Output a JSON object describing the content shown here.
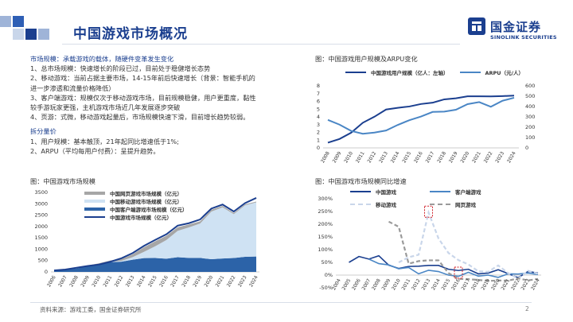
{
  "header": {
    "title": "中国游戏市场概况",
    "logo_cn": "国金证券",
    "logo_en": "SINOLINK SECURITIES",
    "accent_colors": [
      "#1b3f8f",
      "#2e5fb5",
      "#9fb4d8"
    ]
  },
  "left_text": {
    "heading1": "市场规模：承载游戏的载体，随硬件变革发生变化",
    "lines1": [
      "1、总市场规模：快速增长的阶段已过，目前处于稳健增长态势",
      "2、移动游戏：当前占据主要市场，14-15年前后快速增长（背景：智能手机的",
      "进一步渗透和流量价格降低）",
      "3、客户端游戏：规模仅次于移动游戏市场，目前规模稳健，用户更重度，黏性",
      "较手游玩家更强，主机游戏市场近几年发展逐步突破",
      "4、页游：式微，移动游戏起量后，市场规模快速下滑，目前增长趋势较弱。"
    ],
    "heading2": "拆分量价",
    "lines2": [
      "1、用户规模：基本触顶，21年起同比增速低于1%;",
      "2、ARPU（平均每用户付费）：呈提升趋势。"
    ]
  },
  "charts": {
    "users_title": "图：中国游戏用户规模及ARPU变化",
    "market_title": "图：中国游戏市场规模",
    "growth_title": "图：中国游戏市场规模同比增速"
  },
  "chart_data": [
    {
      "type": "line",
      "title": "图：中国游戏用户规模及ARPU变化",
      "x": [
        "2008",
        "2009",
        "2010",
        "2011",
        "2012",
        "2013",
        "2014",
        "2015",
        "2016",
        "2017",
        "2018",
        "2019",
        "2020",
        "2021",
        "2022",
        "2023",
        "2024"
      ],
      "series": [
        {
          "name": "中国游戏用户规模（亿人：左轴）",
          "axis": "left",
          "color": "#1b3f8f",
          "values": [
            0.67,
            1.15,
            1.96,
            3.24,
            4.02,
            4.95,
            5.17,
            5.34,
            5.66,
            5.83,
            6.26,
            6.4,
            6.65,
            6.66,
            6.64,
            6.68,
            6.74
          ]
        },
        {
          "name": "ARPU（元/人）",
          "axis": "right",
          "color": "#4a86c5",
          "values": [
            271,
            225,
            164,
            137,
            148,
            168,
            222,
            268,
            303,
            348,
            351,
            369,
            423,
            443,
            398,
            456,
            485
          ]
        }
      ],
      "ylim_left": [
        0,
        8
      ],
      "yticks_left": [
        0,
        1,
        2,
        3,
        4,
        5,
        6,
        7,
        8
      ],
      "ylim_right": [
        0,
        600
      ],
      "yticks_right": [
        0,
        100,
        200,
        300,
        400,
        500,
        600
      ]
    },
    {
      "type": "area",
      "title": "图：中国游戏市场规模",
      "x": [
        "2006",
        "2007",
        "2008",
        "2009",
        "2010",
        "2011",
        "2012",
        "2013",
        "2014",
        "2015",
        "2016",
        "2017",
        "2018",
        "2019",
        "2020",
        "2021",
        "2022",
        "2023",
        "2024"
      ],
      "series": [
        {
          "name": "中国客户端游戏市场规模（亿元）",
          "color": "#2c63a8",
          "values": [
            65,
            106,
            154,
            257,
            331,
            429,
            451,
            537,
            609,
            612,
            583,
            648,
            619,
            616,
            560,
            589,
            614,
            663,
            680
          ]
        },
        {
          "name": "中国移动游戏市场规模（亿元）",
          "color": "#cfe2f3",
          "values": [
            0,
            0,
            2,
            5,
            15,
            23,
            33,
            113,
            275,
            515,
            820,
            1161,
            1339,
            1514,
            2096,
            2255,
            1930,
            2269,
            2382
          ]
        },
        {
          "name": "中国网页游戏市场规模（亿元）",
          "color": "#a6a6a6",
          "values": [
            0,
            0,
            5,
            19,
            36,
            52,
            81,
            128,
            203,
            220,
            188,
            157,
            127,
            98,
            77,
            60,
            52,
            41,
            35
          ]
        },
        {
          "name": "中国游戏市场规模（亿元）",
          "color": "#1b3f8f",
          "kind": "line",
          "values": [
            65,
            106,
            186,
            263,
            326,
            446,
            603,
            832,
            1145,
            1407,
            1656,
            2036,
            2144,
            2308,
            2787,
            2965,
            2659,
            3029,
            3257
          ]
        }
      ],
      "ylim": [
        0,
        3500
      ],
      "yticks": [
        0,
        500,
        1000,
        1500,
        2000,
        2500,
        3000,
        3500
      ]
    },
    {
      "type": "line",
      "title": "图：中国游戏市场规模同比增速",
      "x": [
        "2004",
        "2005",
        "2006",
        "2007",
        "2008",
        "2009",
        "2010",
        "2011",
        "2012",
        "2013",
        "2014",
        "2015",
        "2016",
        "2017",
        "2018",
        "2019",
        "2020",
        "2021",
        "2022",
        "2023",
        "2024"
      ],
      "series": [
        {
          "name": "中国游戏",
          "color": "#1b3f8f",
          "values": [
            null,
            50,
            73,
            63,
            76,
            39,
            26,
            34,
            35,
            38,
            38,
            23,
            18,
            23,
            5,
            8,
            21,
            6,
            -10,
            14,
            8
          ]
        },
        {
          "name": "客户端游戏",
          "color": "#4a86c5",
          "values": [
            null,
            null,
            null,
            63,
            45,
            40,
            25,
            30,
            5,
            19,
            14,
            0,
            -5,
            11,
            -4,
            0,
            -9,
            5,
            4,
            8,
            2
          ]
        },
        {
          "name": "移动游戏",
          "color": "#c9d6ea",
          "dash": true,
          "values": [
            null,
            null,
            null,
            null,
            null,
            null,
            50,
            70,
            80,
            246,
            144,
            87,
            59,
            42,
            15,
            13,
            38,
            8,
            -14,
            17,
            5
          ]
        },
        {
          "name": "网页游戏",
          "color": "#9a9a9a",
          "dash": true,
          "values": [
            null,
            null,
            null,
            null,
            null,
            210,
            190,
            45,
            55,
            58,
            58,
            8,
            -15,
            -16,
            -19,
            -23,
            -21,
            -22,
            -13,
            -21,
            -15
          ]
        }
      ],
      "ylim": [
        -50,
        300
      ],
      "yticks": [
        -50,
        0,
        50,
        100,
        150,
        200,
        250,
        300
      ],
      "annotations": [
        "2013 移动游戏峰值（红色虚线框）",
        "2016 网页游戏转负（红色虚线框）"
      ]
    }
  ],
  "footer": {
    "source": "资料来源：游戏工委，国金证券研究所",
    "page": "2"
  }
}
